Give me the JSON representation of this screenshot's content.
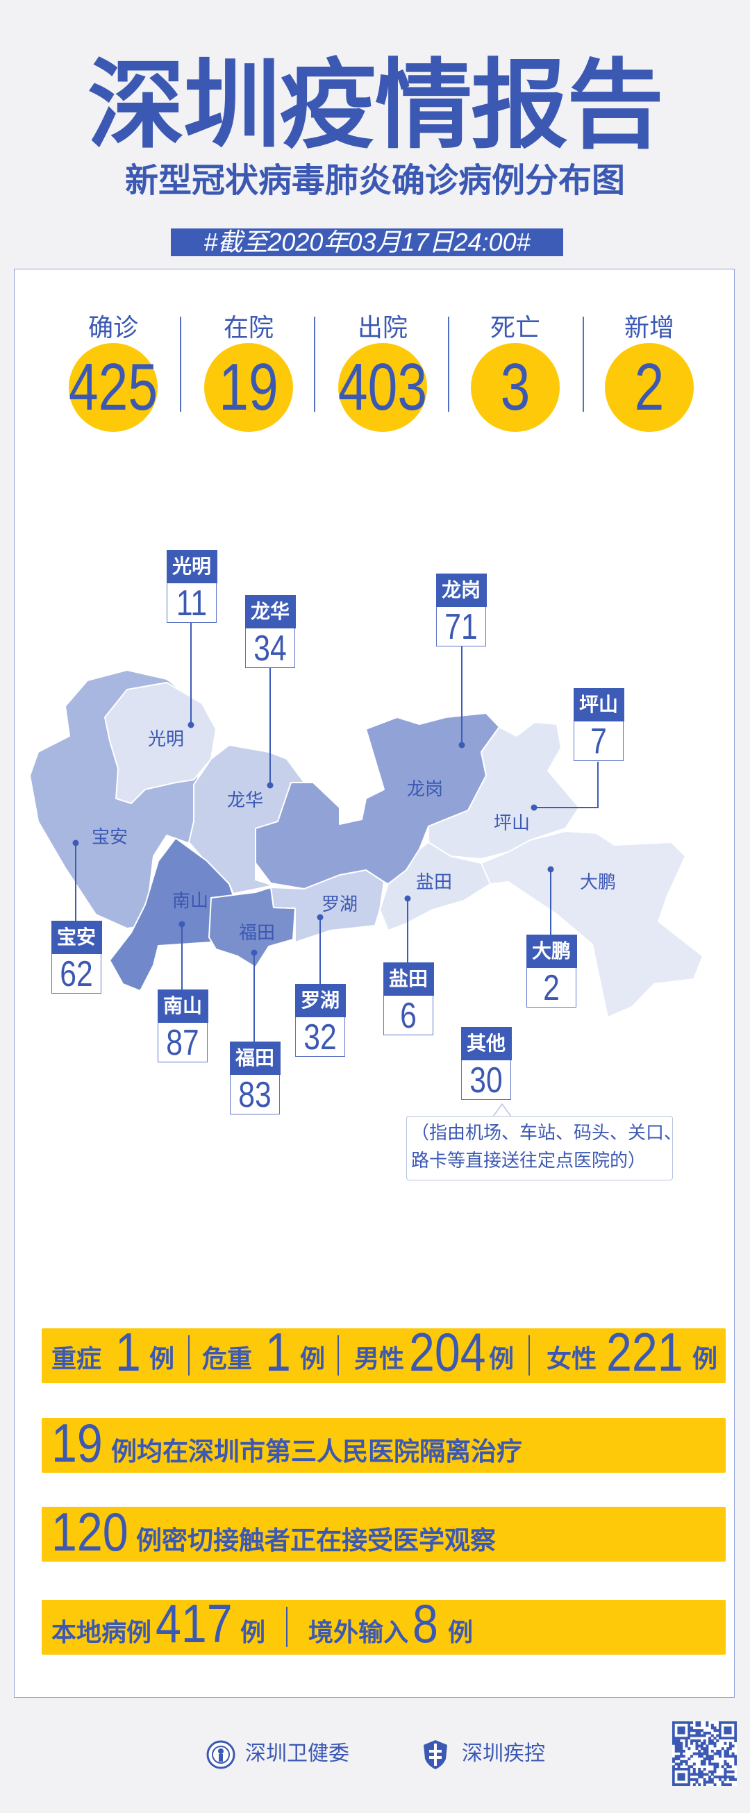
{
  "header": {
    "title": "深圳疫情报告",
    "subtitle": "新型冠状病毒肺炎确诊病例分布图",
    "date_tag": "#截至2020年03月17日24:00#"
  },
  "stats": [
    {
      "label": "确诊",
      "value": "425"
    },
    {
      "label": "在院",
      "value": "19"
    },
    {
      "label": "出院",
      "value": "403"
    },
    {
      "label": "死亡",
      "value": "3"
    },
    {
      "label": "新增",
      "value": "2"
    }
  ],
  "map": {
    "districts": [
      {
        "name": "光明",
        "count": "11"
      },
      {
        "name": "龙华",
        "count": "34"
      },
      {
        "name": "龙岗",
        "count": "71"
      },
      {
        "name": "坪山",
        "count": "7"
      },
      {
        "name": "宝安",
        "count": "62"
      },
      {
        "name": "南山",
        "count": "87"
      },
      {
        "name": "福田",
        "count": "83"
      },
      {
        "name": "罗湖",
        "count": "32"
      },
      {
        "name": "盐田",
        "count": "6"
      },
      {
        "name": "大鹏",
        "count": "2"
      }
    ],
    "other": {
      "name": "其他",
      "count": "30"
    },
    "note_line1": "（指由机场、车站、码头、关口、",
    "note_line2": "路卡等直接送往定点医院的）"
  },
  "summary": {
    "severe_label": "重症",
    "severe_value": "1",
    "critical_label": "危重",
    "critical_value": "1",
    "male_label": "男性",
    "male_value": "204",
    "female_label": "女性",
    "female_value": "221",
    "unit": "例",
    "hospital_value": "19",
    "hospital_text": "例均在深圳市第三人民医院隔离治疗",
    "contacts_value": "120",
    "contacts_text": "例密切接触者正在接受医学观察",
    "local_label": "本地病例",
    "local_value": "417",
    "imported_label": "境外输入",
    "imported_value": "8"
  },
  "footer": {
    "org1": "深圳卫健委",
    "org2": "深圳疾控"
  },
  "colors": {
    "brand_blue": "#3b58b3",
    "accent_yellow": "#fec909",
    "background": "#f2f2f4"
  }
}
